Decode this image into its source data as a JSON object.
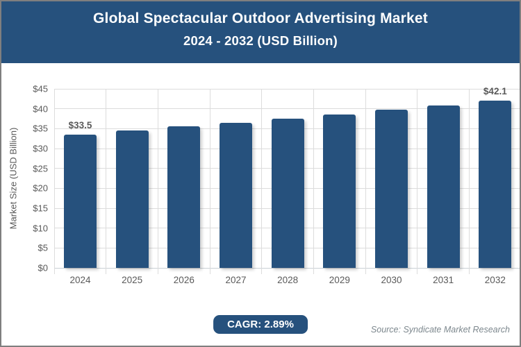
{
  "chart_data": {
    "type": "bar",
    "title": "Global Spectacular Outdoor Advertising Market",
    "subtitle": "2024 - 2032 (USD Billion)",
    "categories": [
      "2024",
      "2025",
      "2026",
      "2027",
      "2028",
      "2029",
      "2030",
      "2031",
      "2032"
    ],
    "values": [
      33.5,
      34.5,
      35.5,
      36.5,
      37.5,
      38.6,
      39.7,
      40.9,
      42.1
    ],
    "data_labels": [
      {
        "index": 0,
        "text": "$33.5"
      },
      {
        "index": 8,
        "text": "$42.1"
      }
    ],
    "xlabel": "",
    "ylabel": "Market Size (USD Billion)",
    "ylim": [
      0,
      45
    ],
    "ytick_step": 5,
    "ytick_prefix": "$",
    "grid": true,
    "legend": false,
    "bar_color": "#26517d"
  },
  "footer": {
    "cagr_label": "CAGR: 2.89%",
    "source": "Source: Syndicate Market Research"
  },
  "colors": {
    "header_bg": "#26517d",
    "bar": "#26517d",
    "grid": "#dcdcdc",
    "tick_text": "#595959",
    "source_text": "#7c878d",
    "border": "#7f7f7f",
    "title_text": "#ffffff"
  }
}
